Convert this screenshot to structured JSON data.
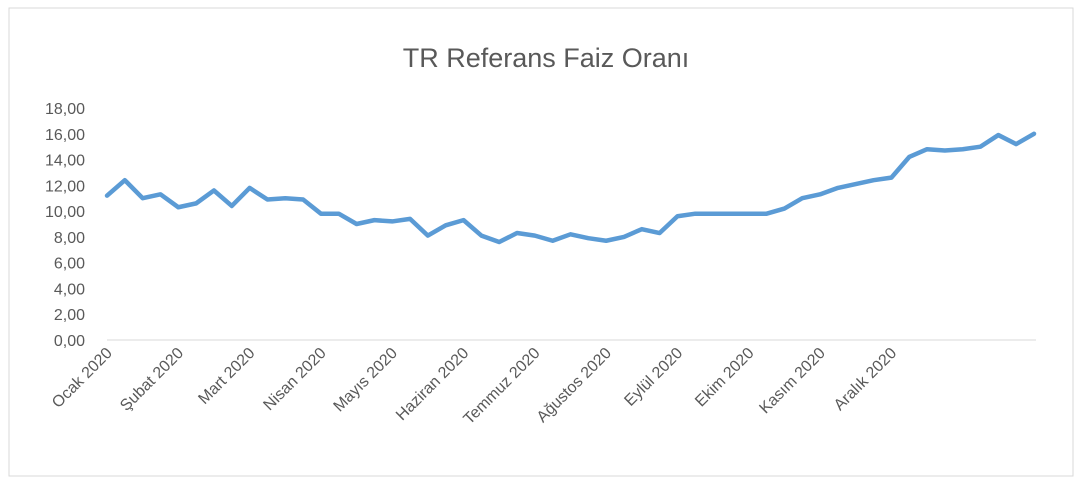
{
  "chart_data": {
    "type": "line",
    "title": "TR Referans Faiz Oranı",
    "categories": [
      "Ocak 2020",
      null,
      null,
      null,
      "Şubat 2020",
      null,
      null,
      null,
      "Mart 2020",
      null,
      null,
      null,
      "Nisan 2020",
      null,
      null,
      null,
      "Mayıs 2020",
      null,
      null,
      null,
      "Haziran 2020",
      null,
      null,
      null,
      "Temmuz 2020",
      null,
      null,
      null,
      "Ağustos 2020",
      null,
      null,
      null,
      "Eylül 2020",
      null,
      null,
      null,
      "Ekim 2020",
      null,
      null,
      null,
      "Kasım 2020",
      null,
      null,
      null,
      "Aralık 2020",
      null,
      null,
      null,
      null,
      null,
      null,
      null,
      null
    ],
    "series": [
      {
        "name": "TR Referans Faiz Oranı",
        "color": "#5b9bd5",
        "values": [
          11.2,
          12.4,
          11.0,
          11.3,
          10.3,
          10.6,
          11.6,
          10.4,
          11.8,
          10.9,
          11.0,
          10.9,
          9.8,
          9.8,
          9.0,
          9.3,
          9.2,
          9.4,
          8.1,
          8.9,
          9.3,
          8.1,
          7.6,
          8.3,
          8.1,
          7.7,
          8.2,
          7.9,
          7.7,
          8.0,
          8.6,
          8.3,
          9.6,
          9.8,
          9.8,
          9.8,
          9.8,
          9.8,
          10.2,
          11.0,
          11.3,
          11.8,
          12.1,
          12.4,
          12.6,
          14.2,
          14.8,
          14.7,
          14.8,
          15.0,
          15.9,
          15.2,
          16.0
        ]
      }
    ],
    "ylim": [
      0,
      18
    ],
    "yticks": [
      {
        "value": 0,
        "label": "0,00"
      },
      {
        "value": 2,
        "label": "2,00"
      },
      {
        "value": 4,
        "label": "4,00"
      },
      {
        "value": 6,
        "label": "6,00"
      },
      {
        "value": 8,
        "label": "8,00"
      },
      {
        "value": 10,
        "label": "10,00"
      },
      {
        "value": 12,
        "label": "12,00"
      },
      {
        "value": 14,
        "label": "14,00"
      },
      {
        "value": 16,
        "label": "16,00"
      },
      {
        "value": 18,
        "label": "18,00"
      }
    ],
    "grid": false
  }
}
